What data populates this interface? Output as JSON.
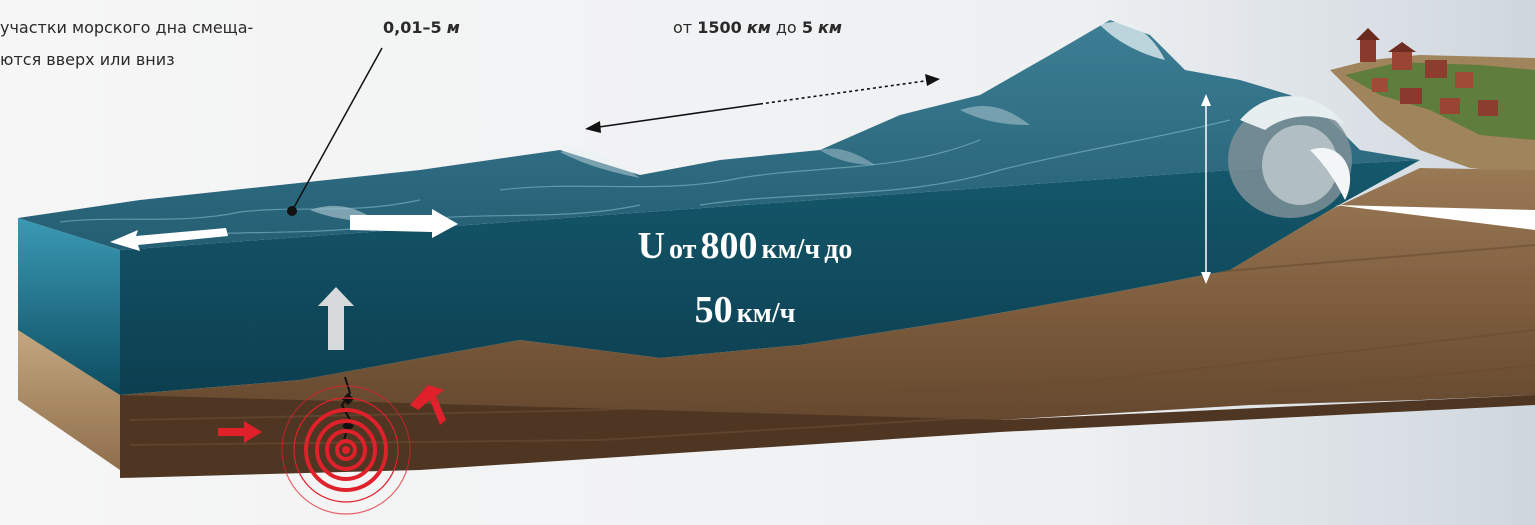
{
  "captions": {
    "seafloor_line1": "участки морского дна смеща-",
    "seafloor_line2": "ются вверх или вниз",
    "height_range_value": "0,01–5",
    "height_range_unit": "м",
    "wavelength_prefix": "от",
    "wavelength_from_value": "1500",
    "wavelength_from_unit": "км",
    "wavelength_mid": "до",
    "wavelength_to_value": "5",
    "wavelength_to_unit": "км"
  },
  "speed_label": {
    "symbol": "U",
    "prefix": "от",
    "from_value": "800",
    "from_unit": "км/ч",
    "mid": "до",
    "to_value": "50",
    "to_unit": "км/ч"
  },
  "colors": {
    "ocean_surface": "#2e6f86",
    "ocean_deep": "#0f4a5d",
    "water_side": "#1f6a80",
    "seabed": "#8a6a48",
    "seabed_dark": "#5b412a",
    "foam": "#e8f2f4",
    "epicenter": "#e0202a",
    "background": "#f3f3f3"
  }
}
